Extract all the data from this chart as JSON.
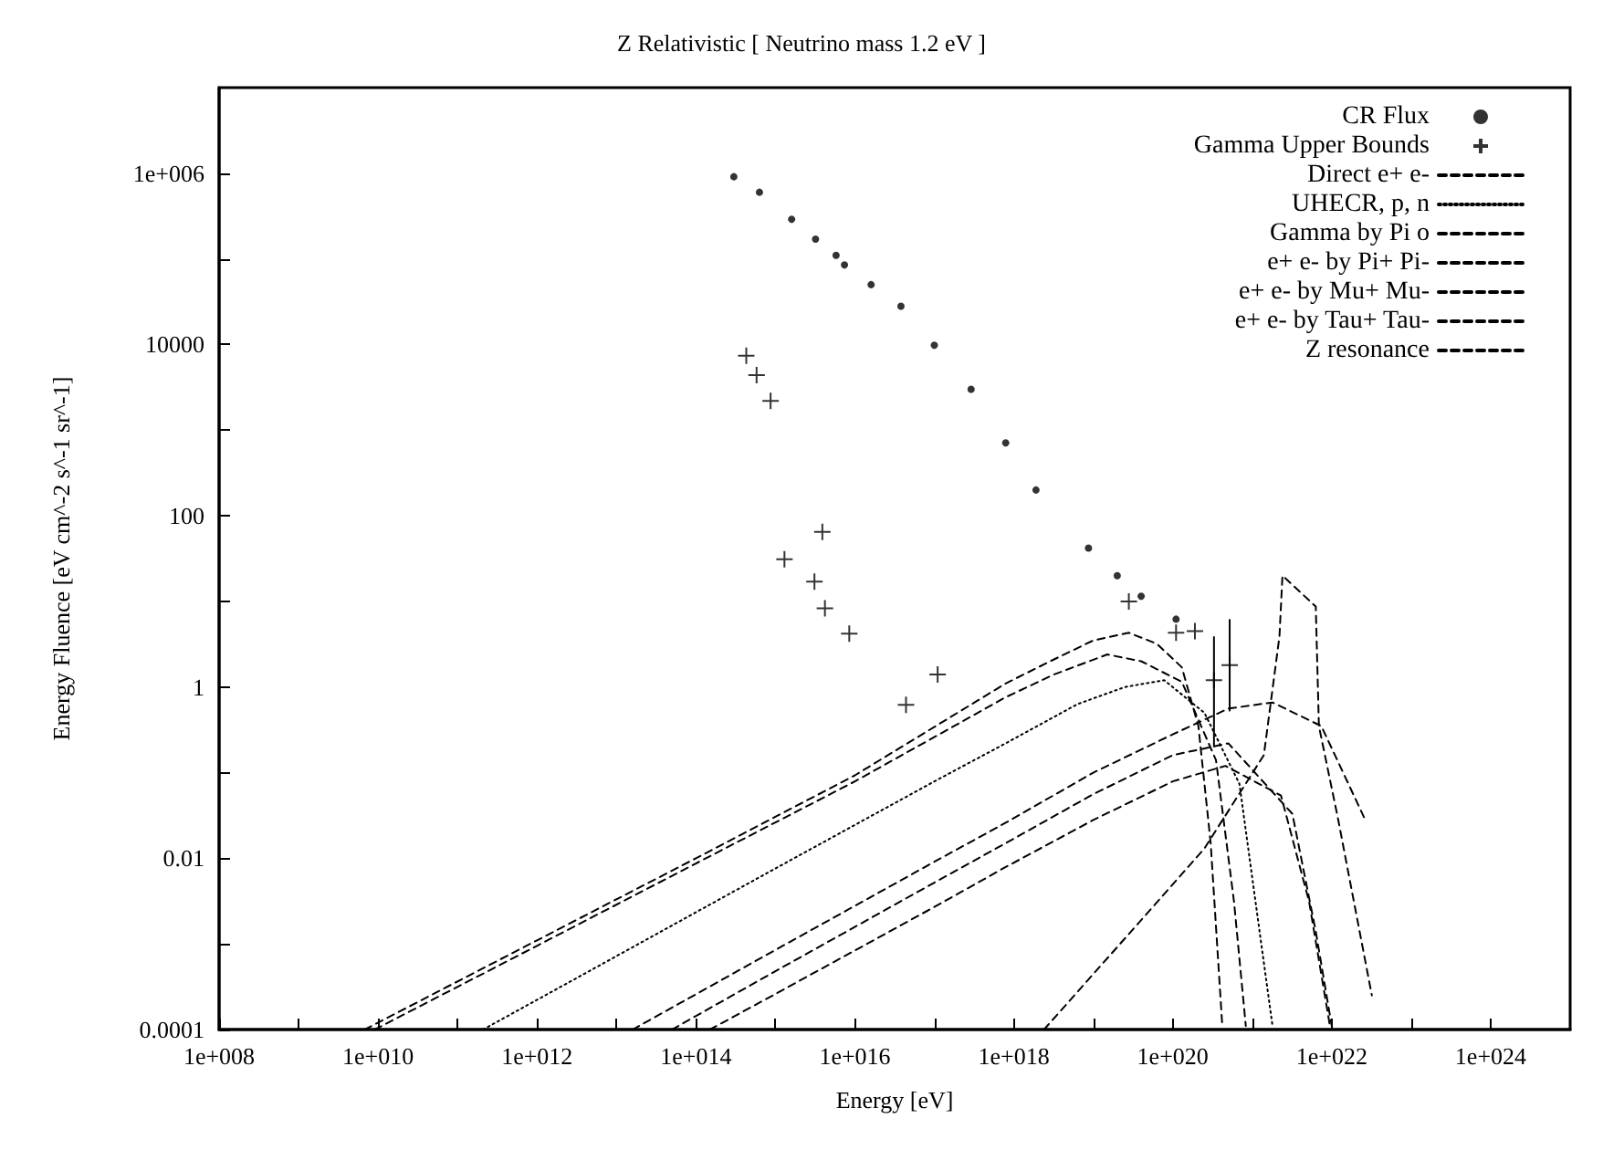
{
  "chart_data": {
    "type": "line",
    "title": "Z Relativistic [ Neutrino mass 1.2 eV ]",
    "xlabel": "Energy [eV]",
    "ylabel": "Energy Fluence [eV cm^-2 s^-1 sr^-1]",
    "log": "xy",
    "grid": false,
    "legend": "top right",
    "xlim": [
      100000000.0,
      1e+25
    ],
    "xticks": [
      {
        "value": 100000000.0,
        "label": "1e+008"
      },
      {
        "value": 1000000000.0,
        "label": null
      },
      {
        "value": 10000000000.0,
        "label": "1e+010"
      },
      {
        "value": 100000000000.0,
        "label": null
      },
      {
        "value": 1000000000000.0,
        "label": "1e+012"
      },
      {
        "value": 10000000000000.0,
        "label": null
      },
      {
        "value": 100000000000000.0,
        "label": "1e+014"
      },
      {
        "value": 1000000000000000.0,
        "label": null
      },
      {
        "value": 1e+16,
        "label": "1e+016"
      },
      {
        "value": 1e+17,
        "label": null
      },
      {
        "value": 1e+18,
        "label": "1e+018"
      },
      {
        "value": 1e+19,
        "label": null
      },
      {
        "value": 1e+20,
        "label": "1e+020"
      },
      {
        "value": 1e+21,
        "label": null
      },
      {
        "value": 1e+22,
        "label": "1e+022"
      },
      {
        "value": 1e+23,
        "label": null
      },
      {
        "value": 1e+24,
        "label": "1e+024"
      }
    ],
    "ylim": [
      0.0001,
      10000000.0
    ],
    "yticks": [
      0.0001,
      {
        "value": 0.001,
        "label": null
      },
      0.01,
      {
        "value": 0.1,
        "label": null
      },
      1,
      {
        "value": 10,
        "label": null
      },
      100,
      {
        "value": 1000,
        "label": null
      },
      10000,
      {
        "value": 100000,
        "label": null
      },
      {
        "value": 1000000.0,
        "label": "1e+006"
      }
    ],
    "series": [
      {
        "name": "CR Flux",
        "type": "scatter",
        "marker": "circle",
        "color": "#000000",
        "x": [
          300000000000000.0,
          630000000000000.0,
          1600000000000000.0,
          3200000000000000.0,
          5800000000000000.0,
          7400000000000000.0,
          1.6e+16,
          3.8e+16,
          1e+17,
          2.9e+17,
          7.9e+17,
          1.9e+18,
          8.7e+18,
          2e+19,
          4e+19,
          1.1e+20
        ],
        "values": [
          910000.0,
          600000.0,
          290000.0,
          170000.0,
          110000.0,
          85000.0,
          50000.0,
          28000.0,
          9800.0,
          3000.0,
          710,
          200,
          42,
          20,
          11.5,
          6.2
        ]
      },
      {
        "name": "Gamma Upper Bounds",
        "type": "scatter",
        "marker": "cross",
        "color": "#000000",
        "x": [
          430000000000000.0,
          580000000000000.0,
          870000000000000.0,
          3900000000000000.0,
          1300000000000000.0,
          3100000000000000.0,
          4200000000000000.0,
          8500000000000000.0,
          1.1e+17,
          4.4e+16,
          2.8e+19,
          1.1e+20,
          1.9e+20,
          3.3e+20,
          5.2e+20
        ],
        "values": [
          7400,
          4400,
          2200,
          65,
          31,
          17,
          8.3,
          4.2,
          1.4,
          0.62,
          10,
          4.3,
          4.5,
          1.2,
          1.8
        ],
        "errors": [
          null,
          null,
          null,
          null,
          null,
          null,
          null,
          null,
          null,
          null,
          null,
          null,
          null,
          [
            0.2,
            3.9
          ],
          [
            0.52,
            6.2
          ]
        ]
      },
      {
        "name": "Direct e+ e-",
        "line_style": "dashed",
        "marker": "none",
        "color": "#000000",
        "x": [
          16000000000000.0,
          1000000000000000.0,
          1e+17,
          7.9e+17,
          1e+19,
          1e+20,
          5e+20,
          1.8e+21,
          7.4e+21,
          2.6e+22
        ],
        "values": [
          0.0001,
          0.00085,
          0.0091,
          0.026,
          0.1,
          0.28,
          0.56,
          0.66,
          0.35,
          0.029
        ]
      },
      {
        "name": "UHECR, p, n",
        "line_style": "dotted",
        "marker": "none",
        "color": "#000000",
        "x": [
          210000000000.0,
          10000000000000.0,
          1000000000000000.0,
          1e+17,
          7.9e+17,
          6.3e+18,
          2.5e+19,
          7.8e+19,
          2.5e+20,
          6.9e+20,
          1.1e+21,
          1.8e+21
        ],
        "values": [
          0.0001,
          0.00072,
          0.0076,
          0.079,
          0.22,
          0.63,
          1.0,
          1.2,
          0.5,
          0.074,
          0.0031,
          0.00011
        ]
      },
      {
        "name": "Gamma by Pi o",
        "line_style": "dashed",
        "marker": "none",
        "color": "#000000",
        "x": [
          6800000000.0,
          1000000000000.0,
          100000000000000.0,
          1e+16,
          7.9e+17,
          3.2e+18,
          1e+19,
          2.8e+19,
          6.3e+19,
          1.3e+20,
          2.1e+20,
          3e+20,
          4.2e+20
        ],
        "values": [
          0.0001,
          0.0011,
          0.01,
          0.093,
          1.1,
          2.1,
          3.5,
          4.3,
          3.2,
          1.7,
          0.35,
          0.015,
          0.00011
        ]
      },
      {
        "name": "e+ e- by Pi+ Pi-",
        "line_style": "dashed",
        "marker": "none",
        "color": "#000000",
        "x": [
          9100000000.0,
          1000000000000.0,
          100000000000000.0,
          1e+16,
          7.9e+17,
          3.2e+18,
          1.5e+19,
          4e+19,
          1.3e+20,
          3.5e+20,
          5.9e+20,
          8.3e+20
        ],
        "values": [
          0.0001,
          0.00095,
          0.0087,
          0.079,
          0.76,
          1.4,
          2.4,
          2.0,
          1.15,
          0.14,
          0.0031,
          0.00011
        ]
      },
      {
        "name": "e+ e- by Mu+ Mu-",
        "line_style": "dashed",
        "marker": "none",
        "color": "#000000",
        "x": [
          50000000000000.0,
          1000000000000000.0,
          1e+17,
          7.9e+17,
          1e+19,
          1e+20,
          5e+20,
          3.2e+21,
          6.3e+21,
          1e+22
        ],
        "values": [
          0.0001,
          0.00048,
          0.0052,
          0.015,
          0.056,
          0.16,
          0.22,
          0.033,
          0.0014,
          0.00011
        ]
      },
      {
        "name": "e+ e- by Tau+ Tau-",
        "line_style": "dashed",
        "marker": "none",
        "color": "#000000",
        "x": [
          150000000000000.0,
          1000000000000000.0,
          1e+17,
          7.9e+17,
          1e+19,
          1e+20,
          4.6e+20,
          2.3e+21,
          5.2e+21,
          9.5e+21
        ],
        "values": [
          0.0001,
          0.00026,
          0.0027,
          0.0079,
          0.028,
          0.079,
          0.12,
          0.054,
          0.0031,
          0.00011
        ]
      },
      {
        "name": "Z resonance",
        "line_style": "dashed",
        "marker": "none",
        "color": "#000000",
        "x": [
          2.4e+18,
          3.2e+19,
          2.5e+20,
          1.4e+21,
          2.2e+21,
          2.4e+21,
          6.3e+21,
          6.9e+21,
          1.2e+22,
          3.2e+22
        ],
        "values": [
          0.0001,
          0.0015,
          0.013,
          0.16,
          3.9,
          20,
          8.7,
          0.35,
          0.029,
          0.00025
        ]
      }
    ]
  }
}
